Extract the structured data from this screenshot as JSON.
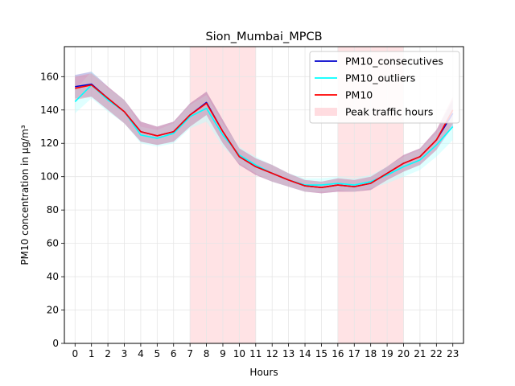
{
  "chart_data": {
    "type": "line",
    "title": "Sion_Mumbai_MPCB",
    "xlabel": "Hours",
    "ylabel": "PM10 concentration in µg/m³",
    "xlim": [
      -0.65,
      23.65
    ],
    "ylim": [
      0,
      178
    ],
    "x": [
      0,
      1,
      2,
      3,
      4,
      5,
      6,
      7,
      8,
      9,
      10,
      11,
      12,
      13,
      14,
      15,
      16,
      17,
      18,
      19,
      20,
      21,
      22,
      23
    ],
    "x_ticks": [
      "0",
      "1",
      "2",
      "3",
      "4",
      "5",
      "6",
      "7",
      "8",
      "9",
      "10",
      "11",
      "12",
      "13",
      "14",
      "15",
      "16",
      "17",
      "18",
      "19",
      "20",
      "21",
      "22",
      "23"
    ],
    "y_ticks": [
      "0",
      "20",
      "40",
      "60",
      "80",
      "100",
      "120",
      "140",
      "160"
    ],
    "y_tick_values": [
      0,
      20,
      40,
      60,
      80,
      100,
      120,
      140,
      160
    ],
    "grid": true,
    "legend_position": "top-right",
    "peak_traffic_hours": [
      [
        7,
        11
      ],
      [
        16,
        20
      ]
    ],
    "colors": {
      "PM10_consecutives": "#0000cc",
      "PM10_outliers": "#00ffff",
      "PM10": "#ff0000",
      "peak": "#ffc0c6",
      "band_consecutives": "#8f8fd8",
      "band_outliers": "#b8ffff",
      "band_pm10": "#e68aa0"
    },
    "series": [
      {
        "name": "PM10_consecutives",
        "values": [
          154,
          155.5,
          147,
          139,
          127,
          124.5,
          127,
          137,
          144.5,
          127,
          112,
          106,
          102,
          98,
          94.5,
          93.5,
          95,
          94,
          96,
          102,
          108,
          112,
          122,
          138
        ],
        "lower": [
          147,
          148,
          140,
          132,
          121,
          119,
          121,
          130,
          137,
          120,
          107,
          101,
          97,
          94,
          91,
          90,
          91,
          91,
          92,
          98,
          103,
          107,
          116,
          130
        ],
        "upper": [
          161,
          163,
          154,
          146,
          133,
          130,
          133,
          144,
          151,
          134,
          117,
          111,
          107,
          102,
          98,
          97,
          99,
          98,
          100,
          106,
          113,
          117,
          128,
          146
        ]
      },
      {
        "name": "PM10_outliers",
        "values": [
          145,
          155,
          146,
          139,
          125,
          123,
          126,
          136,
          141,
          125,
          113,
          107,
          102,
          98,
          95,
          95,
          96,
          95,
          97,
          101,
          106,
          110,
          119,
          130
        ],
        "lower": [
          138,
          147,
          139,
          132,
          120,
          118,
          120,
          129,
          133,
          118,
          108,
          102,
          97,
          94,
          91,
          91,
          92,
          91,
          93,
          96,
          100,
          104,
          112,
          122
        ],
        "upper": [
          152,
          163,
          153,
          146,
          130,
          128,
          132,
          143,
          149,
          132,
          118,
          112,
          107,
          102,
          99,
          99,
          100,
          99,
          101,
          106,
          112,
          116,
          126,
          138
        ]
      },
      {
        "name": "PM10",
        "values": [
          153,
          155,
          147,
          139,
          127,
          124.5,
          127,
          137,
          144,
          127,
          112,
          106,
          102,
          98,
          94.5,
          93.5,
          95,
          94,
          96,
          102,
          108,
          112,
          122,
          140
        ],
        "lower": [
          146,
          148,
          140,
          132,
          121,
          119,
          121,
          130,
          137,
          120,
          107,
          101,
          97,
          94,
          91,
          90,
          91,
          91,
          92,
          98,
          103,
          107,
          116,
          132
        ],
        "upper": [
          160,
          162,
          154,
          146,
          133,
          130,
          133,
          144,
          151,
          134,
          117,
          111,
          107,
          102,
          98,
          97,
          99,
          98,
          100,
          106,
          113,
          117,
          128,
          148
        ]
      }
    ],
    "legend": {
      "items": [
        {
          "label": "PM10_consecutives",
          "kind": "line",
          "color": "#0000cc"
        },
        {
          "label": "PM10_outliers",
          "kind": "line",
          "color": "#00ffff"
        },
        {
          "label": "PM10",
          "kind": "line",
          "color": "#ff0000"
        },
        {
          "label": "Peak traffic hours",
          "kind": "patch",
          "color": "#ffc0c6"
        }
      ]
    }
  }
}
